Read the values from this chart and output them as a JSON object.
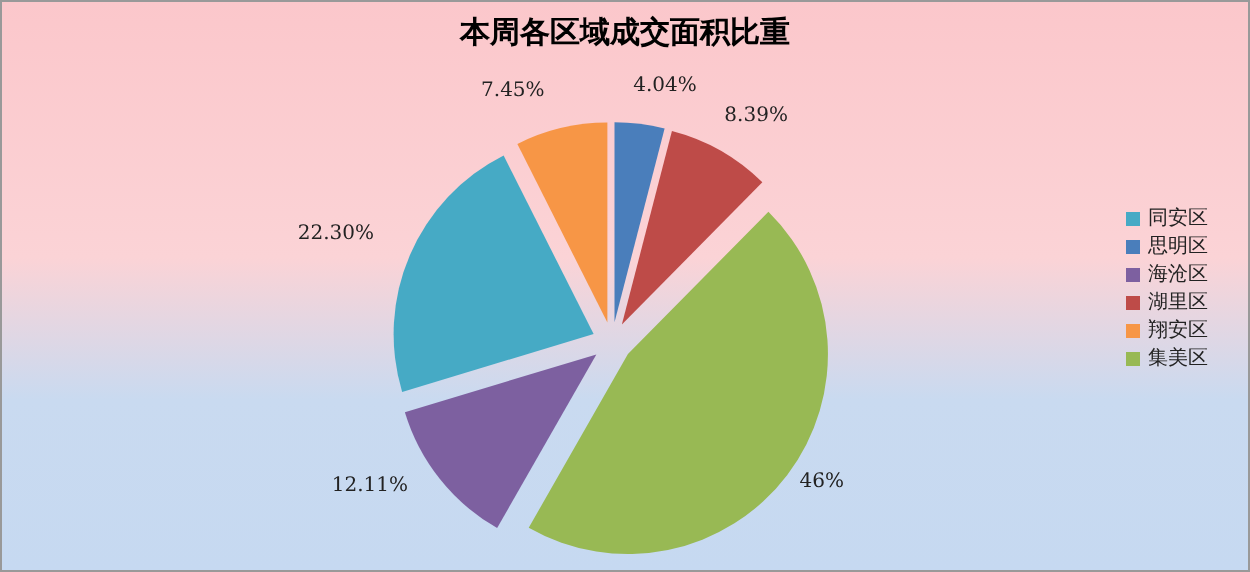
{
  "chart_data": {
    "type": "pie",
    "title": "本周各区域成交面积比重",
    "categories": [
      "思明区",
      "湖里区",
      "集美区",
      "海沧区",
      "同安区",
      "翔安区"
    ],
    "values": [
      4.04,
      8.39,
      46,
      12.11,
      22.3,
      7.45
    ],
    "colors": [
      "#4a7ebb",
      "#be4b48",
      "#98b954",
      "#7d60a0",
      "#46aac5",
      "#f79646"
    ],
    "value_labels": [
      "4.04%",
      "8.39%",
      "46%",
      "12.11%",
      "22.30%",
      "7.45%"
    ],
    "legend": "right"
  }
}
